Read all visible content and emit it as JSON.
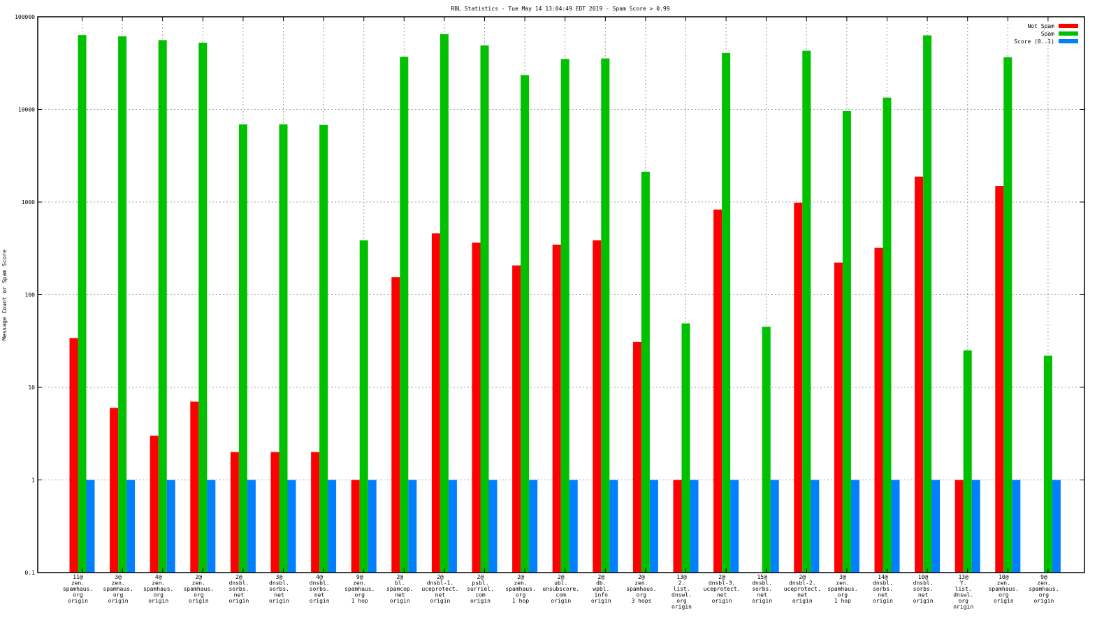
{
  "chart_data": {
    "type": "bar",
    "title": "RBL Statistics - Tue May 14 13:04:49 EDT 2019 - Spam Score > 0.99",
    "xlabel": "",
    "ylabel": "Message Count or Spam Score",
    "yscale": "log",
    "ylim": [
      0.1,
      100000
    ],
    "yticks": [
      "0.1",
      "1",
      "10",
      "100",
      "1000",
      "10000",
      "100000"
    ],
    "grid": true,
    "legend_position": "top-right",
    "categories": [
      [
        "11@",
        "zen.",
        "spamhaus.",
        "org",
        "origin"
      ],
      [
        "3@",
        "zen.",
        "spamhaus.",
        "org",
        "origin"
      ],
      [
        "4@",
        "zen.",
        "spamhaus.",
        "org",
        "origin"
      ],
      [
        "2@",
        "zen.",
        "spamhaus.",
        "org",
        "origin"
      ],
      [
        "2@",
        "dnsbl.",
        "sorbs.",
        "net",
        "origin"
      ],
      [
        "3@",
        "dnsbl.",
        "sorbs.",
        "net",
        "origin"
      ],
      [
        "4@",
        "dnsbl.",
        "sorbs.",
        "net",
        "origin"
      ],
      [
        "9@",
        "zen.",
        "spamhaus.",
        "org",
        "1 hop"
      ],
      [
        "2@",
        "bl.",
        "spamcop.",
        "net",
        "origin"
      ],
      [
        "2@",
        "dnsbl-1.",
        "uceprotect.",
        "net",
        "origin"
      ],
      [
        "2@",
        "psbl.",
        "surriel.",
        "com",
        "origin"
      ],
      [
        "2@",
        "zen.",
        "spamhaus.",
        "org",
        "1 hop"
      ],
      [
        "2@",
        "ubl.",
        "unsubscore.",
        "com",
        "origin"
      ],
      [
        "2@",
        "db.",
        "wpbl.",
        "info",
        "origin"
      ],
      [
        "2@",
        "zen.",
        "spamhaus.",
        "org",
        "3 hops"
      ],
      [
        "13@",
        "2.",
        "list.",
        "dnswl.",
        "org",
        "origin"
      ],
      [
        "2@",
        "dnsbl-3.",
        "uceprotect.",
        "net",
        "origin"
      ],
      [
        "15@",
        "dnsbl.",
        "sorbs.",
        "net",
        "origin"
      ],
      [
        "2@",
        "dnsbl-2.",
        "uceprotect.",
        "net",
        "origin"
      ],
      [
        "3@",
        "zen.",
        "spamhaus.",
        "org",
        "1 hop"
      ],
      [
        "14@",
        "dnsbl.",
        "sorbs.",
        "net",
        "origin"
      ],
      [
        "10@",
        "dnsbl.",
        "sorbs.",
        "net",
        "origin"
      ],
      [
        "13@",
        "Y.",
        "list.",
        "dnswl.",
        "org",
        "origin"
      ],
      [
        "10@",
        "zen.",
        "spamhaus.",
        "org",
        "origin"
      ],
      [
        "9@",
        "zen.",
        "spamhaus.",
        "org",
        "origin"
      ]
    ],
    "series": [
      {
        "name": "Not Spam",
        "color": "#ff0000",
        "values": [
          34,
          6,
          3,
          7,
          2,
          2,
          2,
          1,
          155,
          460,
          365,
          207,
          347,
          387,
          31,
          1,
          830,
          null,
          985,
          222,
          320,
          1880,
          1,
          1490,
          null
        ]
      },
      {
        "name": "Spam",
        "color": "#00c000",
        "values": [
          63500,
          61500,
          56000,
          52500,
          6900,
          6900,
          6800,
          387,
          37000,
          65000,
          49000,
          23500,
          35000,
          35500,
          2120,
          49,
          40500,
          45,
          43000,
          9600,
          13400,
          63000,
          25,
          36500,
          22
        ]
      },
      {
        "name": "Score (0..1)",
        "color": "#0080ff",
        "values": [
          1,
          1,
          1,
          1,
          1,
          1,
          1,
          1,
          1,
          1,
          1,
          1,
          1,
          1,
          1,
          1,
          1,
          1,
          1,
          1,
          1,
          1,
          1,
          1,
          1
        ]
      }
    ]
  }
}
